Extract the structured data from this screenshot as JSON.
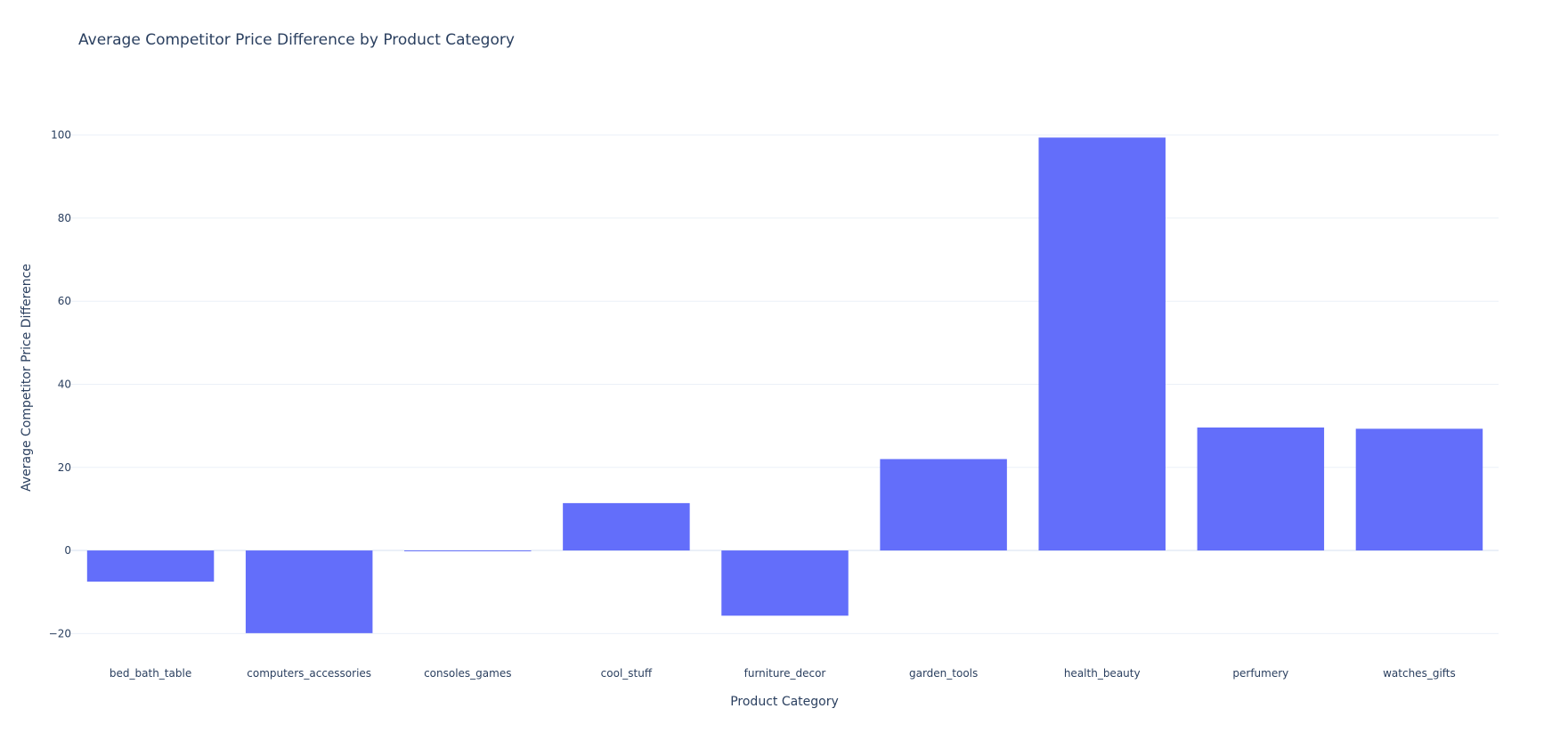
{
  "chart_data": {
    "type": "bar",
    "title": "Average Competitor Price Difference by Product Category",
    "xlabel": "Product Category",
    "ylabel": "Average Competitor Price Difference",
    "categories": [
      "bed_bath_table",
      "computers_accessories",
      "consoles_games",
      "cool_stuff",
      "furniture_decor",
      "garden_tools",
      "health_beauty",
      "perfumery",
      "watches_gifts"
    ],
    "values": [
      -7.5,
      -19.9,
      -0.2,
      11.4,
      -15.7,
      22.0,
      99.4,
      29.6,
      29.3
    ],
    "ylim": [
      -24,
      110
    ],
    "yticks": [
      -20,
      0,
      20,
      40,
      60,
      80,
      100
    ],
    "ytick_labels": [
      "−20",
      "0",
      "20",
      "40",
      "60",
      "80",
      "100"
    ],
    "grid": true,
    "legend": "none",
    "colors": {
      "bar": "#636efa",
      "grid": "#ebf0f8",
      "zeroline": "#ebf0f8",
      "text": "#2a3f5f",
      "background": "#ffffff"
    }
  }
}
